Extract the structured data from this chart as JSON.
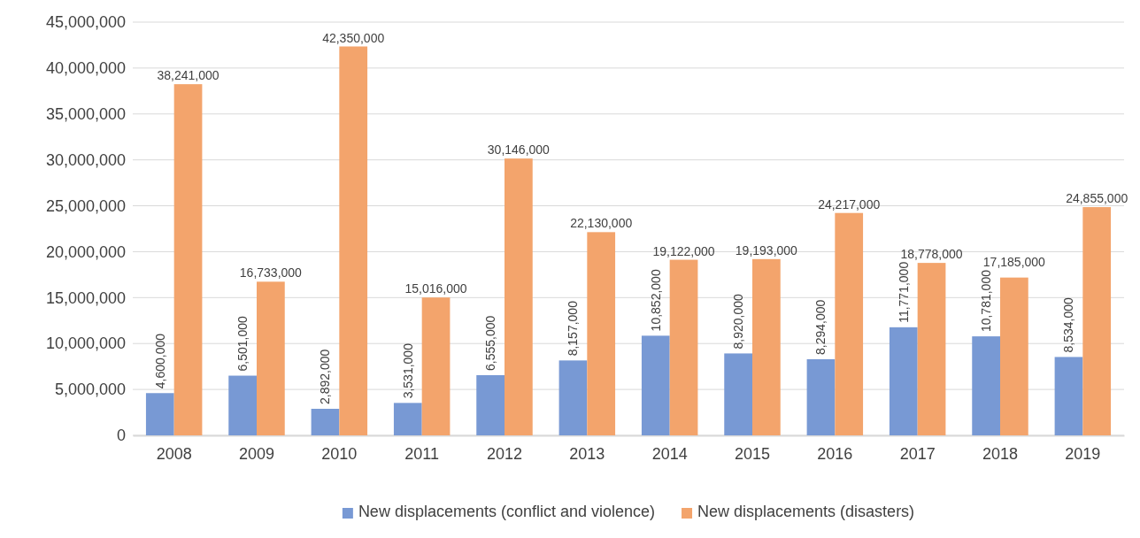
{
  "chart_data": {
    "type": "bar",
    "categories": [
      "2008",
      "2009",
      "2010",
      "2011",
      "2012",
      "2013",
      "2014",
      "2015",
      "2016",
      "2017",
      "2018",
      "2019"
    ],
    "series": [
      {
        "name": "New displacements (conflict and violence)",
        "color": "#7899d4",
        "values": [
          4600000,
          6501000,
          2892000,
          3531000,
          6555000,
          8157000,
          10852000,
          8920000,
          8294000,
          11771000,
          10781000,
          8534000
        ],
        "value_labels": [
          "4,600,000",
          "6,501,000",
          "2,892,000",
          "3,531,000",
          "6,555,000",
          "8,157,000",
          "10,852,000",
          "8,920,000",
          "8,294,000",
          "11,771,000",
          "10,781,000",
          "8,534,000"
        ]
      },
      {
        "name": "New displacements (disasters)",
        "color": "#f3a46c",
        "values": [
          38241000,
          16733000,
          42350000,
          15016000,
          30146000,
          22130000,
          19122000,
          19193000,
          24217000,
          18778000,
          17185000,
          24855000
        ],
        "value_labels": [
          "38,241,000",
          "16,733,000",
          "42,350,000",
          "15,016,000",
          "30,146,000",
          "22,130,000",
          "19,122,000",
          "19,193,000",
          "24,217,000",
          "18,778,000",
          "17,185,000",
          "24,855,000"
        ]
      }
    ],
    "ylim": [
      0,
      45000000
    ],
    "yticks": [
      {
        "value": 0,
        "label": "0"
      },
      {
        "value": 5000000,
        "label": "5,000,000"
      },
      {
        "value": 10000000,
        "label": "10,000,000"
      },
      {
        "value": 15000000,
        "label": "15,000,000"
      },
      {
        "value": 20000000,
        "label": "20,000,000"
      },
      {
        "value": 25000000,
        "label": "25,000,000"
      },
      {
        "value": 30000000,
        "label": "30,000,000"
      },
      {
        "value": 35000000,
        "label": "35,000,000"
      },
      {
        "value": 40000000,
        "label": "40,000,000"
      },
      {
        "value": 45000000,
        "label": "45,000,000"
      }
    ],
    "grid": "y",
    "legend": "bottom"
  }
}
